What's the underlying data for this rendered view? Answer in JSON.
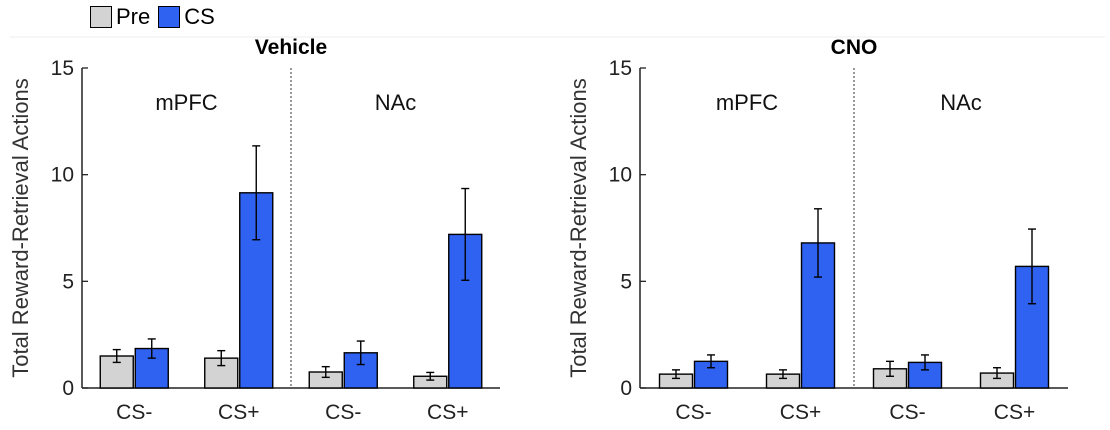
{
  "chart_data": [
    {
      "type": "bar",
      "title": "Vehicle",
      "ylabel": "Total Reward-Retrieval Actions",
      "ylim": [
        0,
        15
      ],
      "yticks": [
        0,
        5,
        10,
        15
      ],
      "grid": false,
      "legend_placement": "top-left",
      "groups": [
        {
          "label": "mPFC",
          "categories": [
            "CS-",
            "CS+"
          ]
        },
        {
          "label": "NAc",
          "categories": [
            "CS-",
            "CS+"
          ]
        }
      ],
      "categories": [
        "CS-",
        "CS+",
        "CS-",
        "CS+"
      ],
      "series": [
        {
          "name": "Pre",
          "color": "#d3d3d3",
          "values": [
            1.5,
            1.4,
            0.75,
            0.55
          ],
          "error": [
            0.3,
            0.35,
            0.25,
            0.18
          ]
        },
        {
          "name": "CS",
          "color": "#2f62f0",
          "values": [
            1.85,
            9.15,
            1.65,
            7.2
          ],
          "error": [
            0.45,
            2.2,
            0.55,
            2.15
          ]
        }
      ]
    },
    {
      "type": "bar",
      "title": "CNO",
      "ylabel": "Total Reward-Retrieval Actions",
      "ylim": [
        0,
        15
      ],
      "yticks": [
        0,
        5,
        10,
        15
      ],
      "grid": false,
      "legend_placement": "top-left",
      "groups": [
        {
          "label": "mPFC",
          "categories": [
            "CS-",
            "CS+"
          ]
        },
        {
          "label": "NAc",
          "categories": [
            "CS-",
            "CS+"
          ]
        }
      ],
      "categories": [
        "CS-",
        "CS+",
        "CS-",
        "CS+"
      ],
      "series": [
        {
          "name": "Pre",
          "color": "#d3d3d3",
          "values": [
            0.65,
            0.65,
            0.9,
            0.7
          ],
          "error": [
            0.2,
            0.2,
            0.35,
            0.25
          ]
        },
        {
          "name": "CS",
          "color": "#2f62f0",
          "values": [
            1.25,
            6.8,
            1.2,
            5.7
          ],
          "error": [
            0.3,
            1.6,
            0.35,
            1.75
          ]
        }
      ]
    }
  ],
  "legend": {
    "items": [
      {
        "label": "Pre",
        "color": "#d3d3d3"
      },
      {
        "label": "CS",
        "color": "#2f62f0"
      }
    ]
  }
}
